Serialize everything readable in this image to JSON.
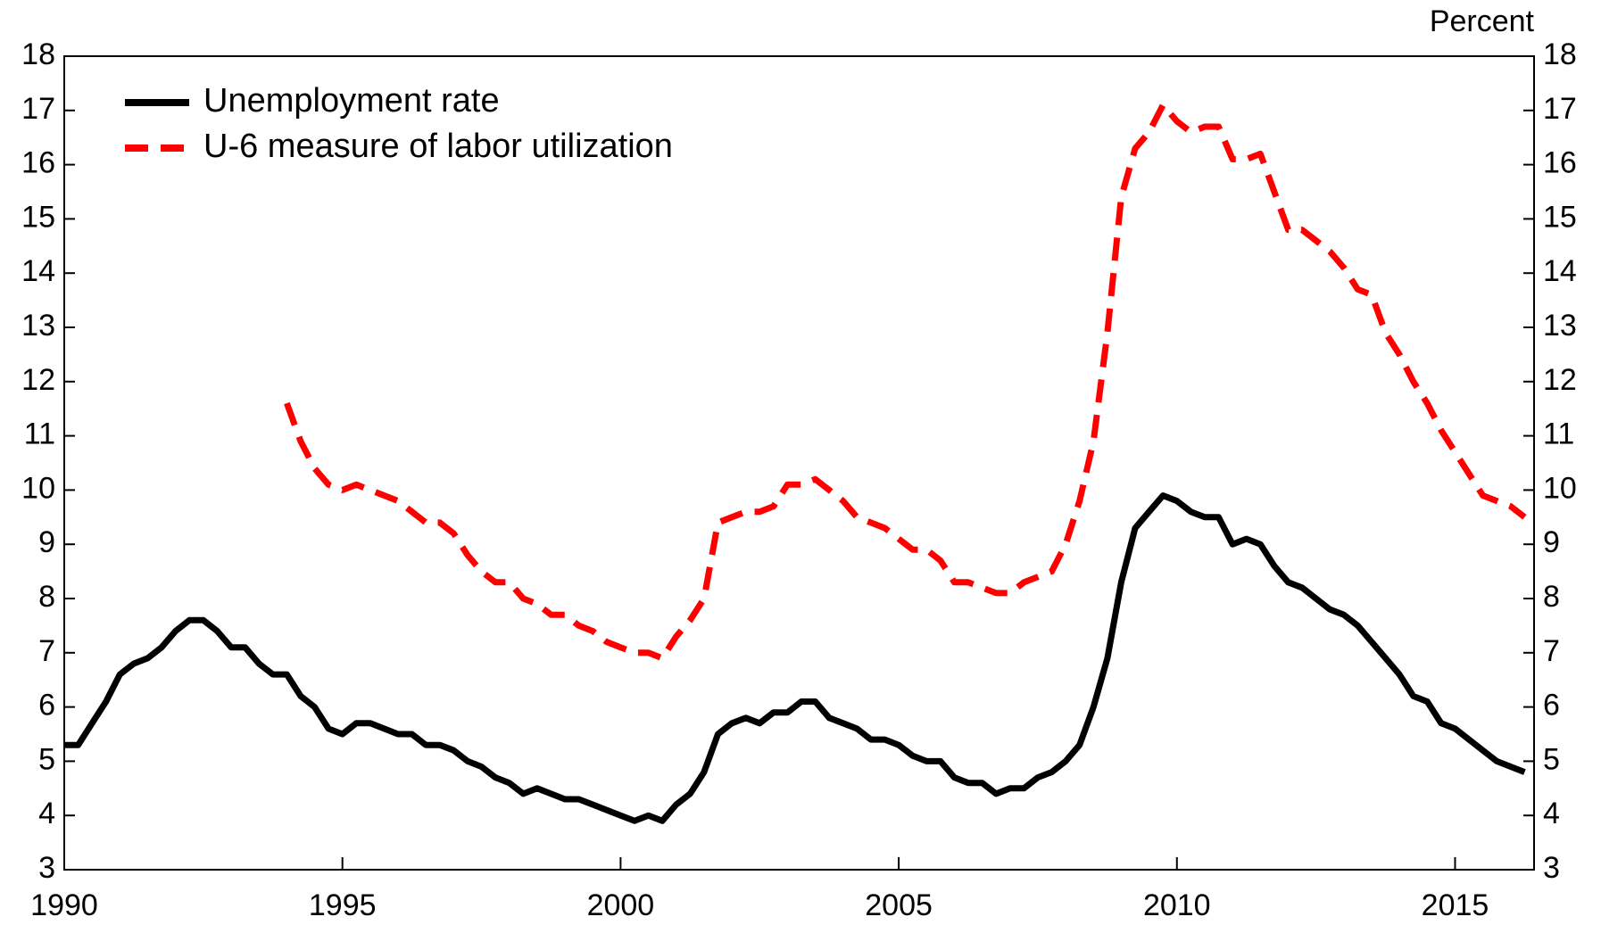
{
  "chart_data": {
    "type": "line",
    "y_label": "Percent",
    "x": [
      1990,
      1990.25,
      1990.5,
      1990.75,
      1991,
      1991.25,
      1991.5,
      1991.75,
      1992,
      1992.25,
      1992.5,
      1992.75,
      1993,
      1993.25,
      1993.5,
      1993.75,
      1994,
      1994.25,
      1994.5,
      1994.75,
      1995,
      1995.25,
      1995.5,
      1995.75,
      1996,
      1996.25,
      1996.5,
      1996.75,
      1997,
      1997.25,
      1997.5,
      1997.75,
      1998,
      1998.25,
      1998.5,
      1998.75,
      1999,
      1999.25,
      1999.5,
      1999.75,
      2000,
      2000.25,
      2000.5,
      2000.75,
      2001,
      2001.25,
      2001.5,
      2001.75,
      2002,
      2002.25,
      2002.5,
      2002.75,
      2003,
      2003.25,
      2003.5,
      2003.75,
      2004,
      2004.25,
      2004.5,
      2004.75,
      2005,
      2005.25,
      2005.5,
      2005.75,
      2006,
      2006.25,
      2006.5,
      2006.75,
      2007,
      2007.25,
      2007.5,
      2007.75,
      2008,
      2008.25,
      2008.5,
      2008.75,
      2009,
      2009.25,
      2009.5,
      2009.75,
      2010,
      2010.25,
      2010.5,
      2010.75,
      2011,
      2011.25,
      2011.5,
      2011.75,
      2012,
      2012.25,
      2012.5,
      2012.75,
      2013,
      2013.25,
      2013.5,
      2013.75,
      2014,
      2014.25,
      2014.5,
      2014.75,
      2015,
      2015.25,
      2015.5,
      2015.75,
      2016,
      2016.25
    ],
    "series": [
      {
        "name": "Unemployment rate",
        "color": "#000000",
        "dash": false,
        "values": [
          5.3,
          5.3,
          5.7,
          6.1,
          6.6,
          6.8,
          6.9,
          7.1,
          7.4,
          7.6,
          7.6,
          7.4,
          7.1,
          7.1,
          6.8,
          6.6,
          6.6,
          6.2,
          6.0,
          5.6,
          5.5,
          5.7,
          5.7,
          5.6,
          5.5,
          5.5,
          5.3,
          5.3,
          5.2,
          5.0,
          4.9,
          4.7,
          4.6,
          4.4,
          4.5,
          4.4,
          4.3,
          4.3,
          4.2,
          4.1,
          4.0,
          3.9,
          4.0,
          3.9,
          4.2,
          4.4,
          4.8,
          5.5,
          5.7,
          5.8,
          5.7,
          5.9,
          5.9,
          6.1,
          6.1,
          5.8,
          5.7,
          5.6,
          5.4,
          5.4,
          5.3,
          5.1,
          5.0,
          5.0,
          4.7,
          4.6,
          4.6,
          4.4,
          4.5,
          4.5,
          4.7,
          4.8,
          5.0,
          5.3,
          6.0,
          6.9,
          8.3,
          9.3,
          9.6,
          9.9,
          9.8,
          9.6,
          9.5,
          9.5,
          9.0,
          9.1,
          9.0,
          8.6,
          8.3,
          8.2,
          8.0,
          7.8,
          7.7,
          7.5,
          7.2,
          6.9,
          6.6,
          6.2,
          6.1,
          5.7,
          5.6,
          5.4,
          5.2,
          5.0,
          4.9,
          4.8
        ]
      },
      {
        "name": "U-6 measure of labor utilization",
        "color": "#ff0000",
        "dash": true,
        "values": [
          null,
          null,
          null,
          null,
          null,
          null,
          null,
          null,
          null,
          null,
          null,
          null,
          null,
          null,
          null,
          null,
          11.6,
          10.9,
          10.4,
          10.1,
          10.0,
          10.1,
          10.0,
          9.9,
          9.8,
          9.6,
          9.4,
          9.4,
          9.2,
          8.8,
          8.5,
          8.3,
          8.3,
          8.0,
          7.9,
          7.7,
          7.7,
          7.5,
          7.4,
          7.2,
          7.1,
          7.0,
          7.0,
          6.9,
          7.3,
          7.6,
          8.0,
          9.4,
          9.5,
          9.6,
          9.6,
          9.7,
          10.1,
          10.1,
          10.2,
          10.0,
          9.8,
          9.5,
          9.4,
          9.3,
          9.1,
          8.9,
          8.9,
          8.7,
          8.3,
          8.3,
          8.2,
          8.1,
          8.1,
          8.3,
          8.4,
          8.5,
          9.0,
          9.8,
          10.9,
          12.9,
          15.4,
          16.3,
          16.6,
          17.1,
          16.8,
          16.6,
          16.7,
          16.7,
          16.1,
          16.1,
          16.2,
          15.5,
          14.8,
          14.8,
          14.6,
          14.4,
          14.1,
          13.7,
          13.6,
          12.9,
          12.5,
          12.0,
          11.6,
          11.1,
          10.7,
          10.3,
          9.9,
          9.8,
          9.7,
          9.5
        ]
      }
    ],
    "xlim": [
      1990,
      2016.42
    ],
    "xticks": [
      1990,
      1995,
      2000,
      2005,
      2010,
      2015
    ],
    "ylim": [
      3,
      18
    ],
    "yticks": [
      3,
      4,
      5,
      6,
      7,
      8,
      9,
      10,
      11,
      12,
      13,
      14,
      15,
      16,
      17,
      18
    ],
    "y2lim": [
      3,
      18
    ],
    "y2ticks": [
      3,
      4,
      5,
      6,
      7,
      8,
      9,
      10,
      11,
      12,
      13,
      14,
      15,
      16,
      17,
      18
    ],
    "legend": "upper left",
    "grid": false
  }
}
